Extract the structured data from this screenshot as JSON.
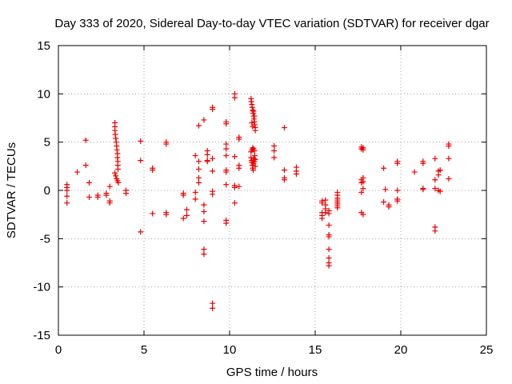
{
  "chart_data": {
    "type": "scatter",
    "title": "Day 333 of 2020, Sidereal Day-to-day VTEC variation (SDTVAR) for receiver dgar",
    "xlabel": "GPS time / hours",
    "ylabel": "SDTVAR / TECUs",
    "xlim": [
      0,
      25
    ],
    "ylim": [
      -15,
      15
    ],
    "xticks": [
      0,
      5,
      10,
      15,
      20,
      25
    ],
    "xtick_labels": [
      "0",
      "5",
      "10",
      "15",
      "20",
      "25"
    ],
    "yticks": [
      -15,
      -10,
      -5,
      0,
      5,
      10,
      15
    ],
    "ytick_labels": [
      "-15",
      "-10",
      "-5",
      "0",
      "5",
      "10",
      "15"
    ],
    "grid": true,
    "marker": "+",
    "color": "#ee0000",
    "series": [
      {
        "name": "SDTVAR",
        "points": [
          [
            0.5,
            0.6
          ],
          [
            0.5,
            0.3
          ],
          [
            0.5,
            0.0
          ],
          [
            0.5,
            -0.6
          ],
          [
            0.5,
            -1.3
          ],
          [
            1.1,
            1.9
          ],
          [
            1.6,
            5.2
          ],
          [
            1.6,
            2.6
          ],
          [
            1.8,
            0.8
          ],
          [
            1.8,
            -0.7
          ],
          [
            2.3,
            -0.5
          ],
          [
            2.3,
            -0.7
          ],
          [
            2.8,
            -0.3
          ],
          [
            2.8,
            -0.5
          ],
          [
            3.0,
            0.4
          ],
          [
            3.0,
            -1.1
          ],
          [
            3.0,
            -1.3
          ],
          [
            3.3,
            7.0
          ],
          [
            3.3,
            6.6
          ],
          [
            3.3,
            6.2
          ],
          [
            3.32,
            5.8
          ],
          [
            3.35,
            5.4
          ],
          [
            3.38,
            5.0
          ],
          [
            3.4,
            4.6
          ],
          [
            3.42,
            4.2
          ],
          [
            3.45,
            3.8
          ],
          [
            3.45,
            3.4
          ],
          [
            3.47,
            3.0
          ],
          [
            3.47,
            2.6
          ],
          [
            3.48,
            2.2
          ],
          [
            3.3,
            1.8
          ],
          [
            3.35,
            1.5
          ],
          [
            3.4,
            1.2
          ],
          [
            3.45,
            1.0
          ],
          [
            3.5,
            0.8
          ],
          [
            3.95,
            0.0
          ],
          [
            3.95,
            -0.3
          ],
          [
            4.8,
            5.1
          ],
          [
            4.8,
            3.1
          ],
          [
            4.8,
            -4.3
          ],
          [
            5.5,
            2.3
          ],
          [
            5.5,
            2.1
          ],
          [
            5.5,
            -2.4
          ],
          [
            6.3,
            5.0
          ],
          [
            6.3,
            4.8
          ],
          [
            6.3,
            -2.3
          ],
          [
            6.3,
            -2.5
          ],
          [
            7.3,
            -0.3
          ],
          [
            7.3,
            -0.5
          ],
          [
            7.3,
            -2.9
          ],
          [
            7.5,
            -2.6
          ],
          [
            7.5,
            -2.0
          ],
          [
            8.0,
            3.6
          ],
          [
            8.0,
            -0.2
          ],
          [
            8.0,
            -0.9
          ],
          [
            8.2,
            6.7
          ],
          [
            8.2,
            3.0
          ],
          [
            8.2,
            2.2
          ],
          [
            8.2,
            1.3
          ],
          [
            8.2,
            0.8
          ],
          [
            8.5,
            7.3
          ],
          [
            8.5,
            -1.5
          ],
          [
            8.5,
            -2.2
          ],
          [
            8.5,
            -3.2
          ],
          [
            8.5,
            -6.1
          ],
          [
            8.5,
            -6.6
          ],
          [
            8.7,
            4.1
          ],
          [
            8.7,
            3.7
          ],
          [
            8.7,
            3.1
          ],
          [
            8.7,
            3.0
          ],
          [
            9.0,
            8.6
          ],
          [
            9.0,
            8.4
          ],
          [
            9.0,
            3.3
          ],
          [
            9.0,
            2.0
          ],
          [
            9.0,
            -0.1
          ],
          [
            9.0,
            -0.4
          ],
          [
            9.0,
            -11.7
          ],
          [
            9.0,
            -12.2
          ],
          [
            9.8,
            7.1
          ],
          [
            9.8,
            6.9
          ],
          [
            9.8,
            4.8
          ],
          [
            9.8,
            4.3
          ],
          [
            9.8,
            3.6
          ],
          [
            9.8,
            2.1
          ],
          [
            9.8,
            1.9
          ],
          [
            9.8,
            0.6
          ],
          [
            9.8,
            -3.1
          ],
          [
            9.8,
            -3.4
          ],
          [
            10.3,
            10.0
          ],
          [
            10.3,
            9.6
          ],
          [
            10.3,
            3.5
          ],
          [
            10.3,
            0.3
          ],
          [
            10.3,
            0.5
          ],
          [
            10.3,
            -1.3
          ],
          [
            10.55,
            5.5
          ],
          [
            10.55,
            5.3
          ],
          [
            10.55,
            2.6
          ],
          [
            10.55,
            2.3
          ],
          [
            10.55,
            0.4
          ],
          [
            11.25,
            9.5
          ],
          [
            11.27,
            9.2
          ],
          [
            11.3,
            8.9
          ],
          [
            11.32,
            8.6
          ],
          [
            11.35,
            8.3
          ],
          [
            11.37,
            8.0
          ],
          [
            11.4,
            7.7
          ],
          [
            11.42,
            7.4
          ],
          [
            11.45,
            7.1
          ],
          [
            11.47,
            6.8
          ],
          [
            11.5,
            6.5
          ],
          [
            11.5,
            6.2
          ],
          [
            11.3,
            7.0
          ],
          [
            11.35,
            6.6
          ],
          [
            11.4,
            8.2
          ],
          [
            11.45,
            7.7
          ],
          [
            11.25,
            4.0
          ],
          [
            11.3,
            4.2
          ],
          [
            11.35,
            4.4
          ],
          [
            11.4,
            4.3
          ],
          [
            11.45,
            4.1
          ],
          [
            11.25,
            3.4
          ],
          [
            11.28,
            3.1
          ],
          [
            11.3,
            2.9
          ],
          [
            11.33,
            2.6
          ],
          [
            11.35,
            2.3
          ],
          [
            11.38,
            2.1
          ],
          [
            11.4,
            2.8
          ],
          [
            11.42,
            3.3
          ],
          [
            11.45,
            3.0
          ],
          [
            11.47,
            3.6
          ],
          [
            11.5,
            2.5
          ],
          [
            11.5,
            3.2
          ],
          [
            12.6,
            4.6
          ],
          [
            12.6,
            4.1
          ],
          [
            12.6,
            3.4
          ],
          [
            13.2,
            6.5
          ],
          [
            13.2,
            2.1
          ],
          [
            13.2,
            1.3
          ],
          [
            13.2,
            1.1
          ],
          [
            13.9,
            2.4
          ],
          [
            13.9,
            2.0
          ],
          [
            13.9,
            1.7
          ],
          [
            15.4,
            -1.1
          ],
          [
            15.4,
            -1.3
          ],
          [
            15.4,
            -2.3
          ],
          [
            15.4,
            -2.6
          ],
          [
            15.4,
            -2.9
          ],
          [
            15.6,
            -1.0
          ],
          [
            15.6,
            -1.5
          ],
          [
            15.6,
            -1.9
          ],
          [
            15.6,
            -2.3
          ],
          [
            15.8,
            -2.1
          ],
          [
            15.8,
            -2.4
          ],
          [
            15.8,
            -3.6
          ],
          [
            15.8,
            -4.6
          ],
          [
            15.8,
            -4.8
          ],
          [
            15.8,
            -6.1
          ],
          [
            15.8,
            -7.0
          ],
          [
            15.8,
            -7.5
          ],
          [
            15.8,
            -7.8
          ],
          [
            16.3,
            -0.2
          ],
          [
            16.3,
            -0.5
          ],
          [
            16.3,
            -0.8
          ],
          [
            16.3,
            -1.0
          ],
          [
            16.3,
            -1.2
          ],
          [
            16.3,
            -1.4
          ],
          [
            16.3,
            -1.6
          ],
          [
            16.3,
            -1.8
          ],
          [
            17.7,
            4.5
          ],
          [
            17.7,
            4.3
          ],
          [
            17.7,
            1.1
          ],
          [
            17.7,
            0.8
          ],
          [
            17.7,
            -0.2
          ],
          [
            17.7,
            -2.3
          ],
          [
            17.8,
            4.4
          ],
          [
            17.8,
            4.2
          ],
          [
            17.8,
            1.3
          ],
          [
            17.8,
            0.9
          ],
          [
            17.8,
            0.2
          ],
          [
            17.8,
            -2.5
          ],
          [
            19.0,
            2.3
          ],
          [
            19.0,
            -1.2
          ],
          [
            19.1,
            0.1
          ],
          [
            19.3,
            -1.5
          ],
          [
            19.3,
            -1.7
          ],
          [
            19.8,
            3.0
          ],
          [
            19.8,
            2.8
          ],
          [
            19.8,
            -0.9
          ],
          [
            19.8,
            -1.1
          ],
          [
            19.8,
            0.0
          ],
          [
            20.8,
            1.9
          ],
          [
            21.3,
            3.0
          ],
          [
            21.3,
            2.8
          ],
          [
            21.3,
            0.2
          ],
          [
            21.3,
            0.1
          ],
          [
            22.0,
            3.3
          ],
          [
            22.0,
            1.1
          ],
          [
            22.0,
            0.2
          ],
          [
            22.0,
            -3.8
          ],
          [
            22.0,
            -4.2
          ],
          [
            22.2,
            2.0
          ],
          [
            22.2,
            1.6
          ],
          [
            22.2,
            0.0
          ],
          [
            22.3,
            2.1
          ],
          [
            22.3,
            -0.1
          ],
          [
            22.8,
            4.8
          ],
          [
            22.8,
            4.6
          ],
          [
            22.8,
            3.3
          ],
          [
            22.8,
            1.2
          ]
        ]
      }
    ]
  }
}
